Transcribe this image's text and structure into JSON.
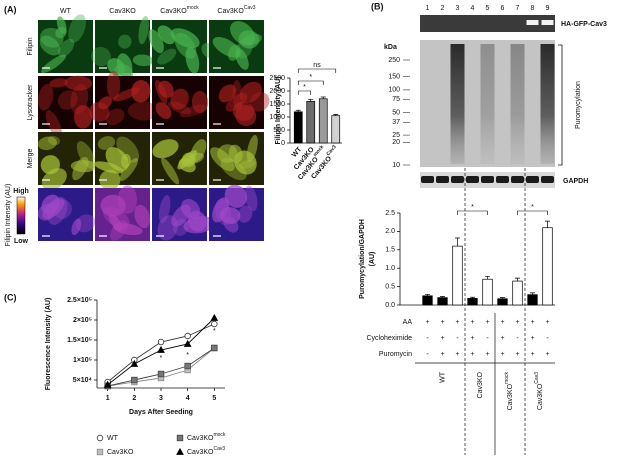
{
  "panel_a": {
    "label": "(A)",
    "columns": [
      "WT",
      "Cav3KO",
      "Cav3KO",
      "Cav3KO"
    ],
    "column_superscripts": {
      "2": "mock",
      "3": "Cav3"
    },
    "rows": [
      "Filipin",
      "Lysotracker",
      "Merge"
    ],
    "colorbar_title": "Filipin Intensity (AU)",
    "colorbar_high": "High",
    "colorbar_low": "Low"
  },
  "panel_b": {
    "label": "(B)",
    "top_blot": "HA-GFP-Cav3",
    "marker_unit": "kDa",
    "markers": [
      250,
      150,
      100,
      75,
      50,
      37,
      25,
      20,
      10
    ],
    "main_blot": "Puromycylation",
    "loading_blot": "GAPDH",
    "treatments": [
      {
        "name": "AA",
        "signs": [
          "+",
          "+",
          "+",
          "+",
          "+",
          "+",
          "+",
          "+",
          "+"
        ]
      },
      {
        "name": "Cycloheximide",
        "signs": [
          "-",
          "+",
          "-",
          "+",
          "-",
          "+",
          "-",
          "+",
          "-"
        ]
      },
      {
        "name": "Puromycin",
        "signs": [
          "-",
          "+",
          "+",
          "+",
          "+",
          "+",
          "+",
          "+",
          "+"
        ]
      }
    ],
    "groups": [
      "WT",
      "Cav3KO",
      "Cav3KO",
      "Cav3KO"
    ],
    "group_superscripts": {
      "2": "mock",
      "3": "Cav3"
    }
  },
  "panel_c": {
    "label": "(C)"
  },
  "chart_data": [
    {
      "type": "bar",
      "y_label": "Filipin Intensity (AU)",
      "categories": [
        "WT",
        "Cav3KO",
        "Cav3KO",
        "Cav3KO"
      ],
      "category_superscripts": {
        "2": "mock",
        "3": "Cav3"
      },
      "values": [
        1200,
        1600,
        1700,
        1050
      ],
      "errors": [
        60,
        80,
        70,
        50
      ],
      "colors": [
        "#000000",
        "#6d6d6d",
        "#9a9a9a",
        "#d2d2d2"
      ],
      "ylim": [
        0,
        2500
      ],
      "yticks": [
        0,
        500,
        1000,
        1500,
        2000,
        2500
      ],
      "significance": [
        "*",
        "*",
        "ns"
      ]
    },
    {
      "type": "bar",
      "y_label": [
        "Puromycylation/GAPDH",
        "(AU)"
      ],
      "categories": [
        "1",
        "2",
        "3",
        "4",
        "5",
        "6",
        "7",
        "8",
        "9"
      ],
      "values": [
        0.25,
        0.2,
        1.6,
        0.18,
        0.7,
        0.17,
        0.65,
        0.28,
        2.1
      ],
      "errors": [
        0.04,
        0.03,
        0.22,
        0.03,
        0.08,
        0.03,
        0.08,
        0.05,
        0.18
      ],
      "colors": [
        "#000000",
        "#000000",
        "#ffffff",
        "#000000",
        "#ffffff",
        "#000000",
        "#ffffff",
        "#000000",
        "#ffffff"
      ],
      "ylim": [
        0,
        2.5
      ],
      "yticks": [
        {
          "value": 0,
          "label": "0.0"
        },
        0.5,
        {
          "value": 1,
          "label": "1.0"
        },
        1.5,
        {
          "value": 2,
          "label": "2.0"
        },
        2.5
      ],
      "significance": [
        "*",
        "*"
      ]
    },
    {
      "type": "line",
      "y_label": "Fluorescence Intensity (AU)",
      "x_label": "Days After Seeding",
      "x": [
        1,
        2,
        3,
        4,
        5
      ],
      "xlim": [
        0.6,
        5.4
      ],
      "xticks": [
        1,
        2,
        3,
        4,
        5
      ],
      "ylim": [
        30000,
        250000
      ],
      "yticks": [
        {
          "value": 50000,
          "label": "5×10⁴"
        },
        {
          "value": 100000,
          "label": "1×10⁵"
        },
        {
          "value": 150000,
          "label": "1.5×10⁵"
        },
        {
          "value": 200000,
          "label": "2×10⁵"
        },
        {
          "value": 250000,
          "label": "2.5×10⁵"
        }
      ],
      "series": [
        {
          "name": "WT",
          "marker": "circle",
          "color": "#333333",
          "fill": "#ffffff",
          "values": [
            45000,
            100000,
            145000,
            160000,
            190000
          ]
        },
        {
          "name": "Cav3KO",
          "marker": "square",
          "color": "#8a8a8a",
          "fill": "#bdbdbd",
          "values": [
            35000,
            45000,
            55000,
            75000,
            130000
          ]
        },
        {
          "name": "Cav3KO",
          "superscript": "mock",
          "marker": "square",
          "color": "#444444",
          "fill": "#777777",
          "values": [
            35000,
            50000,
            65000,
            85000,
            130000
          ]
        },
        {
          "name": "Cav3KO",
          "superscript": "Cav3",
          "marker": "triangle",
          "color": "#000000",
          "fill": "#000000",
          "values": [
            38000,
            90000,
            125000,
            140000,
            205000
          ]
        }
      ],
      "annotations": [
        {
          "text": "*",
          "x": 3,
          "y": 105000
        },
        {
          "text": "*",
          "x": 4,
          "y": 112000
        },
        {
          "text": "*",
          "x": 5,
          "y": 172000
        }
      ]
    }
  ]
}
